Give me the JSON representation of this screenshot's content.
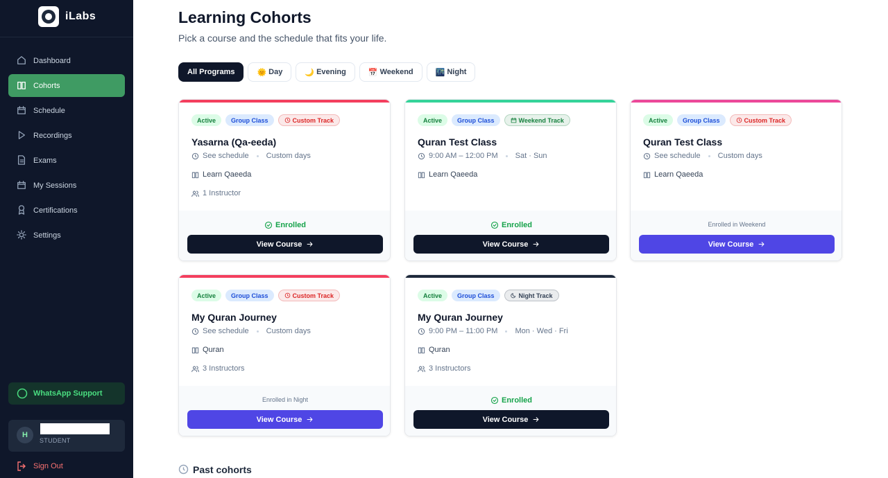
{
  "sidebar": {
    "brand": "iLabs",
    "nav": [
      {
        "label": "Dashboard",
        "active": false
      },
      {
        "label": "Cohorts",
        "active": true
      },
      {
        "label": "Schedule",
        "active": false
      },
      {
        "label": "Recordings",
        "active": false
      },
      {
        "label": "Exams",
        "active": false
      },
      {
        "label": "My Sessions",
        "active": false
      },
      {
        "label": "Certifications",
        "active": false
      },
      {
        "label": "Settings",
        "active": false
      }
    ],
    "support": "WhatsApp Support",
    "user": {
      "initial": "H",
      "role": "STUDENT"
    },
    "sign_out": "Sign Out"
  },
  "header": {
    "title": "Learning Cohorts",
    "subtitle": "Pick a course and the schedule that fits your life."
  },
  "filters": [
    {
      "label": "All Programs",
      "active": true
    },
    {
      "icon": "🌞",
      "label": "Day",
      "active": false
    },
    {
      "icon": "🌙",
      "label": "Evening",
      "active": false
    },
    {
      "icon": "📅",
      "label": "Weekend",
      "active": false
    },
    {
      "icon": "🌃",
      "label": "Night",
      "active": false
    }
  ],
  "cohorts": [
    {
      "accent": "#f43f5e",
      "status": "Active",
      "type": "Group Class",
      "track": "Custom Track",
      "track_icon": "clock",
      "track_color": "#dc2626",
      "title": "Yasarna (Qa-eeda)",
      "schedule": "See schedule",
      "days": "Custom days",
      "course": "Learn Qaeeda",
      "instructors": "1 Instructor",
      "enrollment": "Enrolled",
      "enrollment_icon": true,
      "button": "View Course",
      "button_color": "#0f172a"
    },
    {
      "accent": "#34d399",
      "status": "Active",
      "type": "Group Class",
      "track": "Weekend Track",
      "track_icon": "calendar",
      "track_color": "#15803d",
      "title": "Quran Test Class",
      "schedule": "9:00 AM – 12:00 PM",
      "days": "Sat · Sun",
      "course": "Learn Qaeeda",
      "enrollment": "Enrolled",
      "enrollment_icon": true,
      "button": "View Course",
      "button_color": "#0f172a"
    },
    {
      "accent": "#ec4899",
      "status": "Active",
      "type": "Group Class",
      "track": "Custom Track",
      "track_icon": "clock",
      "track_color": "#dc2626",
      "title": "Quran Test Class",
      "schedule": "See schedule",
      "days": "Custom days",
      "course": "Learn Qaeeda",
      "enrollment": "Enrolled in Weekend",
      "enrollment_icon": false,
      "button": "View Course",
      "button_color": "#4f46e5"
    },
    {
      "accent": "#f43f5e",
      "status": "Active",
      "type": "Group Class",
      "track": "Custom Track",
      "track_icon": "clock",
      "track_color": "#dc2626",
      "title": "My Quran Journey",
      "schedule": "See schedule",
      "days": "Custom days",
      "course": "Quran",
      "instructors": "3 Instructors",
      "enrollment": "Enrolled in Night",
      "enrollment_icon": false,
      "button": "View Course",
      "button_color": "#4f46e5"
    },
    {
      "accent": "#1e293b",
      "status": "Active",
      "type": "Group Class",
      "track": "Night Track",
      "track_icon": "moon",
      "track_color": "#334155",
      "title": "My Quran Journey",
      "schedule": "9:00 PM – 11:00 PM",
      "days": "Mon · Wed · Fri",
      "course": "Quran",
      "instructors": "3 Instructors",
      "enrollment": "Enrolled",
      "enrollment_icon": true,
      "button": "View Course",
      "button_color": "#0f172a"
    }
  ],
  "past_title": "Past cohorts"
}
